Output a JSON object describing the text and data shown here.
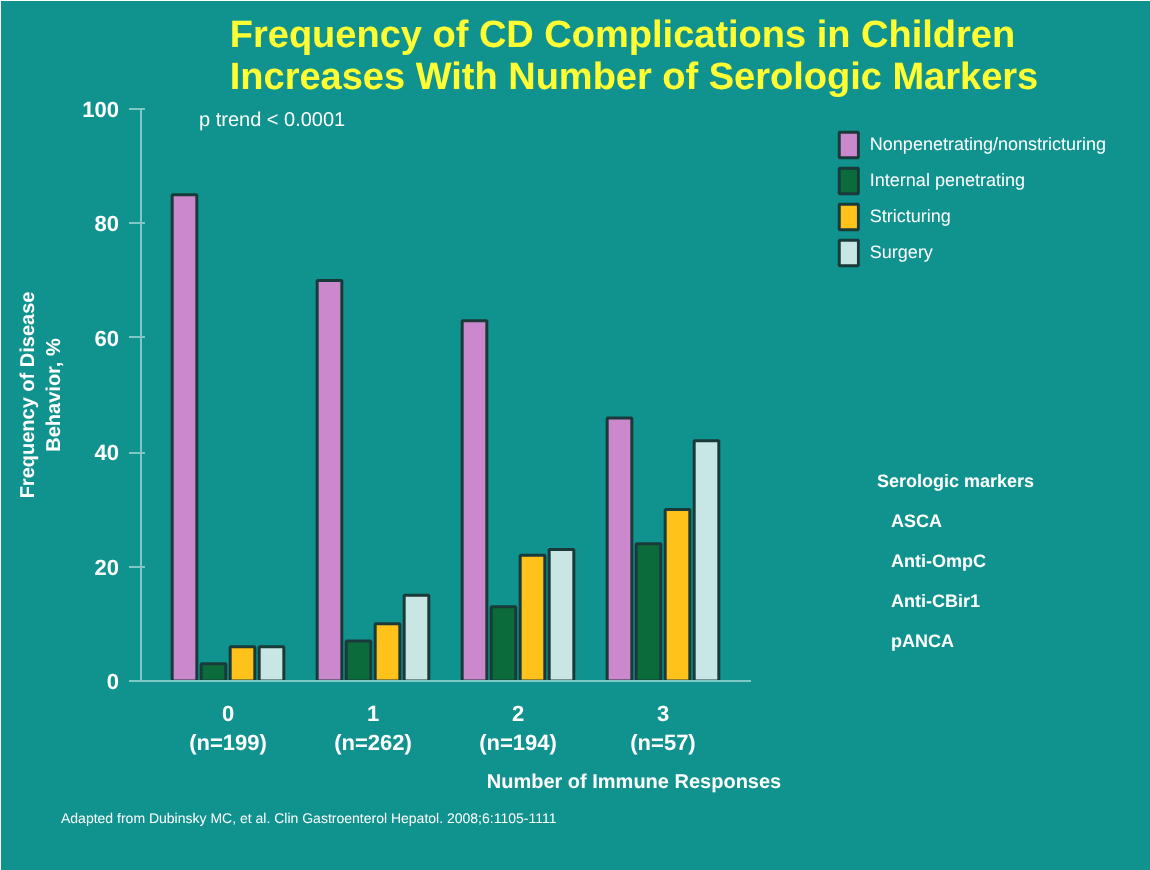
{
  "chart_data": {
    "type": "bar",
    "title": "Frequency of CD Complications in Children\nIncreases With Number of Serologic Markers",
    "categories": [
      "0\n(n=199)",
      "1\n(n=262)",
      "2\n(n=194)",
      "3\n(n=57)"
    ],
    "series": [
      {
        "name": "Nonpenetrating/nonstricturing",
        "color": "#cc88cc",
        "values": [
          85,
          70,
          63,
          46
        ]
      },
      {
        "name": "Internal penetrating",
        "color": "#0b6b3a",
        "values": [
          3,
          7,
          13,
          24
        ]
      },
      {
        "name": "Stricturing",
        "color": "#ffc21a",
        "values": [
          6,
          10,
          22,
          30
        ]
      },
      {
        "name": "Surgery",
        "color": "#c8e6e4",
        "values": [
          6,
          15,
          23,
          42
        ]
      }
    ],
    "xlabel": "Number of Immune Responses",
    "ylabel": "Frequency of Disease\nBehavior, %",
    "ylim": [
      0,
      100
    ],
    "yticks": [
      0,
      20,
      40,
      60,
      80,
      100
    ],
    "grid": false,
    "legend": "top right",
    "annotations": [
      "p trend < 0.0001",
      "Serologic markers",
      "ASCA",
      "Anti-OmpC",
      "Anti-CBir1",
      "pANCA",
      "Adapted from Dubinsky MC, et al. Clin Gastroenterol Hepatol. 2008;6:1105-1111"
    ]
  }
}
